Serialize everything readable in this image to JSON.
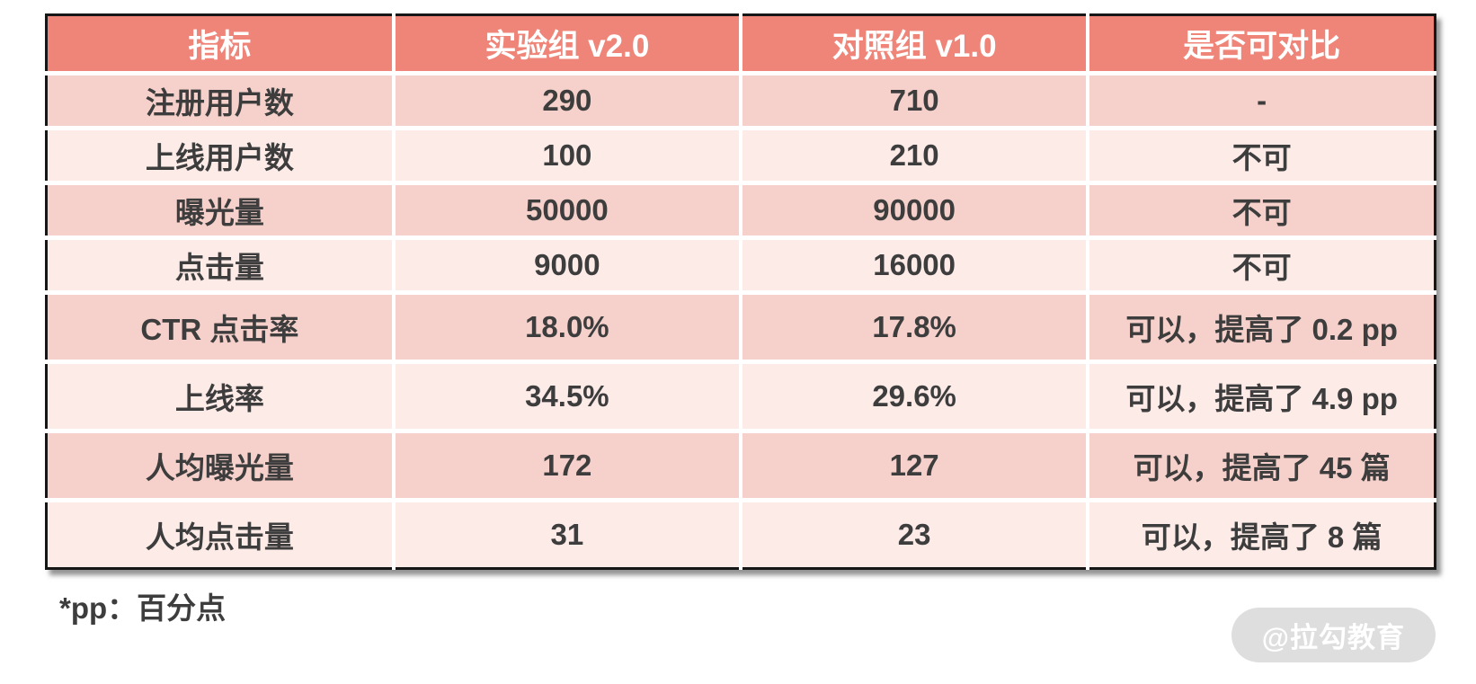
{
  "table": {
    "headers": [
      "指标",
      "实验组 v2.0",
      "对照组 v1.0",
      "是否可对比"
    ],
    "rows": [
      {
        "metric": "注册用户数",
        "experiment": "290",
        "control": "710",
        "comparable": "-"
      },
      {
        "metric": "上线用户数",
        "experiment": "100",
        "control": "210",
        "comparable": "不可"
      },
      {
        "metric": "曝光量",
        "experiment": "50000",
        "control": "90000",
        "comparable": "不可"
      },
      {
        "metric": "点击量",
        "experiment": "9000",
        "control": "16000",
        "comparable": "不可"
      },
      {
        "metric": "CTR 点击率",
        "experiment": "18.0%",
        "control": "17.8%",
        "comparable": "可以，提高了 0.2 pp"
      },
      {
        "metric": "上线率",
        "experiment": "34.5%",
        "control": "29.6%",
        "comparable": "可以，提高了 4.9 pp"
      },
      {
        "metric": "人均曝光量",
        "experiment": "172",
        "control": "127",
        "comparable": "可以，提高了 45 篇"
      },
      {
        "metric": "人均点击量",
        "experiment": "31",
        "control": "23",
        "comparable": "可以，提高了 8 篇"
      }
    ]
  },
  "chart_data": {
    "type": "table",
    "title": "",
    "columns": [
      "指标",
      "实验组 v2.0",
      "对照组 v1.0",
      "是否可对比"
    ],
    "rows": [
      [
        "注册用户数",
        290,
        710,
        "-"
      ],
      [
        "上线用户数",
        100,
        210,
        "不可"
      ],
      [
        "曝光量",
        50000,
        90000,
        "不可"
      ],
      [
        "点击量",
        9000,
        16000,
        "不可"
      ],
      [
        "CTR 点击率",
        "18.0%",
        "17.8%",
        "可以，提高了 0.2 pp"
      ],
      [
        "上线率",
        "34.5%",
        "29.6%",
        "可以，提高了 4.9 pp"
      ],
      [
        "人均曝光量",
        172,
        127,
        "可以，提高了 45 篇"
      ],
      [
        "人均点击量",
        31,
        23,
        "可以，提高了 8 篇"
      ]
    ],
    "footnote": "*pp：百分点"
  },
  "footnote": "*pp：百分点",
  "watermark": "@拉勾教育",
  "colors": {
    "header_bg": "#ef8478",
    "header_text": "#ffffff",
    "row_odd_bg": "#f6d1cb",
    "row_even_bg": "#fdebe8",
    "body_text": "#3d3d3d",
    "border": "#161616",
    "watermark_bg": "#dedede",
    "watermark_text": "#ffffff"
  }
}
